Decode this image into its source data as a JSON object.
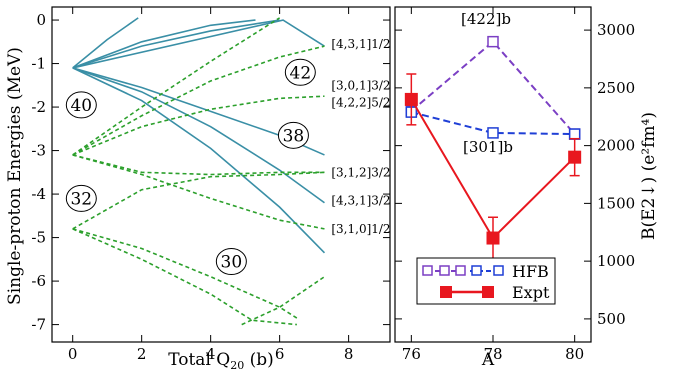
{
  "chart_data": [
    {
      "type": "line",
      "xlabel": "Total Q",
      "xlabel_sub": "20",
      "xlabel_unit": " (b)",
      "ylabel": "Single-proton Energies (MeV)",
      "xlim": [
        -0.6,
        9.2
      ],
      "ylim": [
        -7.4,
        0.3
      ],
      "xticks": [
        0,
        2,
        4,
        6,
        8
      ],
      "yticks": [
        0,
        -1,
        -2,
        -3,
        -4,
        -5,
        -6,
        -7
      ],
      "colors": {
        "solid": "#3a8fa6",
        "dashed": "#2ca02c"
      },
      "solid_curves": [
        [
          [
            0,
            -1.1
          ],
          [
            1.0,
            -0.45
          ],
          [
            1.9,
            0.05
          ]
        ],
        [
          [
            0,
            -1.1
          ],
          [
            2.0,
            -0.5
          ],
          [
            4.0,
            -0.12
          ],
          [
            5.3,
            0.0
          ]
        ],
        [
          [
            0,
            -1.1
          ],
          [
            2.0,
            -0.6
          ],
          [
            4.0,
            -0.25
          ],
          [
            6.0,
            0.0
          ]
        ],
        [
          [
            0,
            -1.1
          ],
          [
            6.1,
            0.0
          ],
          [
            7.3,
            -0.6
          ]
        ],
        [
          [
            0,
            -1.1
          ],
          [
            2.0,
            -1.55
          ],
          [
            4.0,
            -2.1
          ],
          [
            6.0,
            -2.65
          ],
          [
            7.3,
            -3.1
          ]
        ],
        [
          [
            0,
            -1.1
          ],
          [
            2.0,
            -1.65
          ],
          [
            4.0,
            -2.45
          ],
          [
            6.0,
            -3.45
          ],
          [
            7.3,
            -4.2
          ]
        ],
        [
          [
            0,
            -1.1
          ],
          [
            2.0,
            -1.85
          ],
          [
            4.0,
            -2.95
          ],
          [
            6.0,
            -4.3
          ],
          [
            7.3,
            -5.35
          ]
        ]
      ],
      "dashed_curves": [
        [
          [
            0,
            -3.1
          ],
          [
            2.0,
            -2.0
          ],
          [
            4.0,
            -0.95
          ],
          [
            6.0,
            0.05
          ]
        ],
        [
          [
            0,
            -3.1
          ],
          [
            2.0,
            -2.2
          ],
          [
            4.0,
            -1.4
          ],
          [
            6.0,
            -0.85
          ],
          [
            7.3,
            -0.6
          ]
        ],
        [
          [
            0,
            -3.1
          ],
          [
            2.0,
            -2.45
          ],
          [
            4.0,
            -2.05
          ],
          [
            6.0,
            -1.8
          ],
          [
            7.3,
            -1.75
          ]
        ],
        [
          [
            0,
            -3.1
          ],
          [
            2.0,
            -3.5
          ],
          [
            4.0,
            -3.55
          ],
          [
            6.0,
            -3.5
          ],
          [
            7.3,
            -3.5
          ]
        ],
        [
          [
            0,
            -3.1
          ],
          [
            2.0,
            -3.55
          ],
          [
            4.0,
            -4.1
          ],
          [
            6.0,
            -4.6
          ],
          [
            7.3,
            -4.8
          ]
        ],
        [
          [
            0,
            -4.8
          ],
          [
            2.0,
            -3.9
          ],
          [
            4.0,
            -3.6
          ],
          [
            6.0,
            -3.55
          ],
          [
            7.3,
            -3.5
          ]
        ],
        [
          [
            0,
            -4.8
          ],
          [
            2.0,
            -5.25
          ],
          [
            4.0,
            -5.9
          ],
          [
            6.0,
            -6.6
          ],
          [
            6.5,
            -6.85
          ]
        ],
        [
          [
            0,
            -4.8
          ],
          [
            2.0,
            -5.5
          ],
          [
            4.0,
            -6.3
          ],
          [
            5.2,
            -6.9
          ],
          [
            6.5,
            -7.0
          ]
        ],
        [
          [
            4.9,
            -7.0
          ],
          [
            6.0,
            -6.6
          ],
          [
            7.3,
            -5.9
          ]
        ]
      ],
      "level_labels": [
        {
          "text": "[4,3,1]1/2",
          "x": 7.5,
          "y": -0.55
        },
        {
          "text": "[3,0,1]3/2",
          "x": 7.5,
          "y": -1.5
        },
        {
          "text": "[4,2,2]5/2",
          "x": 7.5,
          "y": -1.9
        },
        {
          "text": "[3,1,2]3/2",
          "x": 7.5,
          "y": -3.5
        },
        {
          "text": "[4,3,1]3/2",
          "x": 7.5,
          "y": -4.15
        },
        {
          "text": "[3,1,0]1/2",
          "x": 7.5,
          "y": -4.8
        }
      ],
      "magic_numbers": [
        {
          "text": "40",
          "x": 0.25,
          "y": -1.95
        },
        {
          "text": "42",
          "x": 6.6,
          "y": -1.2
        },
        {
          "text": "38",
          "x": 6.4,
          "y": -2.65
        },
        {
          "text": "32",
          "x": 0.25,
          "y": -4.1
        },
        {
          "text": "30",
          "x": 4.6,
          "y": -5.55
        }
      ]
    },
    {
      "type": "line",
      "xlabel": "A",
      "ylabel": "B(E2↓) (e²fm⁴)",
      "xlim": [
        75.6,
        80.4
      ],
      "ylim": [
        300,
        3200
      ],
      "xticks": [
        76,
        78,
        80
      ],
      "yticks": [
        500,
        1000,
        1500,
        2000,
        2500,
        3000
      ],
      "series": [
        {
          "name": "HFB",
          "label": "[422]b",
          "color": "#7b3fc4",
          "x": [
            76,
            78,
            80
          ],
          "y": [
            2300,
            2900,
            2100
          ]
        },
        {
          "name": "HFB",
          "label": "[301]b",
          "color": "#1f3fd6",
          "x": [
            76,
            78,
            80
          ],
          "y": [
            2290,
            2110,
            2100
          ]
        },
        {
          "name": "Expt",
          "color": "#e8171f",
          "x": [
            76,
            78,
            80
          ],
          "y": [
            2400,
            1200,
            1900
          ],
          "err": [
            220,
            180,
            160
          ]
        }
      ],
      "legend_position": "bottom-right"
    }
  ]
}
